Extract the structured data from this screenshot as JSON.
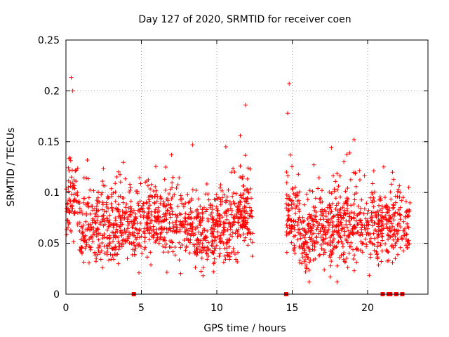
{
  "chart_data": {
    "type": "scatter",
    "title": "Day 127 of 2020, SRMTID for receiver coen",
    "xlabel": "GPS time / hours",
    "ylabel": "SRMTID / TECUs",
    "xlim": [
      0,
      24
    ],
    "ylim": [
      0,
      0.25
    ],
    "x_ticks": [
      0,
      5,
      10,
      15,
      20
    ],
    "x_tick_labels": [
      "0",
      "5",
      "10",
      "15",
      "20"
    ],
    "y_ticks": [
      0,
      0.05,
      0.1,
      0.15,
      0.2,
      0.25
    ],
    "y_tick_labels": [
      "0",
      "0.05",
      "0.1",
      "0.15",
      "0.2",
      "0.25"
    ],
    "grid": true,
    "marker": "+",
    "color": "#ff0000",
    "data_gap_hours": [
      12.4,
      14.6
    ],
    "peak_values": [
      {
        "x": 0.35,
        "y": 0.213
      },
      {
        "x": 0.45,
        "y": 0.2
      },
      {
        "x": 11.9,
        "y": 0.186
      },
      {
        "x": 14.8,
        "y": 0.207
      },
      {
        "x": 14.7,
        "y": 0.178
      },
      {
        "x": 19.1,
        "y": 0.152
      },
      {
        "x": 10.6,
        "y": 0.145
      },
      {
        "x": 7.0,
        "y": 0.137
      },
      {
        "x": 17.6,
        "y": 0.144
      }
    ],
    "zero_markers_x": [
      4.5,
      14.6,
      21.0,
      21.4,
      21.5,
      21.9,
      22.3
    ],
    "segments": [
      {
        "start": 0.0,
        "end": 12.4
      },
      {
        "start": 14.6,
        "end": 22.8
      }
    ]
  }
}
